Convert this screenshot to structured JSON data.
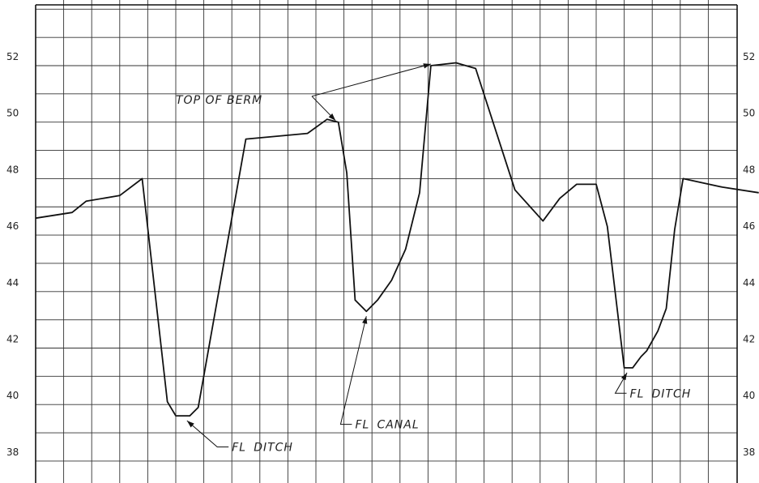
{
  "chart_data": {
    "type": "line",
    "title": "",
    "xlabel": "",
    "ylabel": "",
    "ylim": [
      37,
      54
    ],
    "y_ticks": [
      38,
      40,
      42,
      44,
      46,
      48,
      50,
      52
    ],
    "y_tick_labels": [
      "38",
      "40",
      "42",
      "44",
      "46",
      "48",
      "50",
      "52"
    ],
    "grid": true,
    "colors": {
      "line": "#111111",
      "grid": "#333333",
      "frame": "#111111"
    },
    "profile": [
      [
        0.0,
        46.6
      ],
      [
        1.3,
        46.8
      ],
      [
        1.8,
        47.2
      ],
      [
        3.0,
        47.4
      ],
      [
        3.8,
        48.0
      ],
      [
        4.7,
        40.1
      ],
      [
        5.0,
        39.6
      ],
      [
        5.5,
        39.6
      ],
      [
        5.8,
        39.9
      ],
      [
        7.5,
        49.4
      ],
      [
        8.6,
        49.5
      ],
      [
        9.7,
        49.6
      ],
      [
        10.4,
        50.1
      ],
      [
        10.8,
        50.0
      ],
      [
        11.1,
        48.2
      ],
      [
        11.4,
        43.7
      ],
      [
        11.8,
        43.3
      ],
      [
        12.2,
        43.7
      ],
      [
        12.7,
        44.4
      ],
      [
        13.2,
        45.5
      ],
      [
        13.7,
        47.5
      ],
      [
        14.1,
        52.0
      ],
      [
        15.0,
        52.1
      ],
      [
        15.7,
        51.9
      ],
      [
        17.1,
        47.6
      ],
      [
        18.1,
        46.5
      ],
      [
        18.7,
        47.3
      ],
      [
        19.3,
        47.8
      ],
      [
        20.0,
        47.8
      ],
      [
        20.4,
        46.3
      ],
      [
        21.0,
        41.3
      ],
      [
        21.3,
        41.3
      ],
      [
        21.6,
        41.7
      ],
      [
        21.8,
        41.9
      ],
      [
        22.2,
        42.6
      ],
      [
        22.5,
        43.4
      ],
      [
        22.8,
        46.2
      ],
      [
        23.1,
        48.0
      ],
      [
        24.5,
        47.7
      ],
      [
        25.8,
        47.5
      ]
    ],
    "annotations": [
      {
        "id": "top-of-berm",
        "text": "TOP OF BERM",
        "text_at": [
          5.0,
          50.8
        ],
        "points_to": [
          [
            10.7,
            50.0
          ],
          [
            14.1,
            52.0
          ]
        ]
      },
      {
        "id": "fl-ditch-1",
        "prefix": "FL",
        "text": "DITCH",
        "text_at": [
          7.0,
          38.5
        ],
        "points_to": [
          [
            5.4,
            39.6
          ]
        ]
      },
      {
        "id": "fl-canal",
        "prefix": "FL",
        "text": "CANAL",
        "text_at": [
          11.4,
          39.3
        ],
        "points_to": [
          [
            11.8,
            43.3
          ]
        ]
      },
      {
        "id": "fl-ditch-2",
        "prefix": "FL",
        "text": "DITCH",
        "text_at": [
          21.2,
          40.4
        ],
        "points_to": [
          [
            21.1,
            41.3
          ]
        ]
      }
    ]
  }
}
